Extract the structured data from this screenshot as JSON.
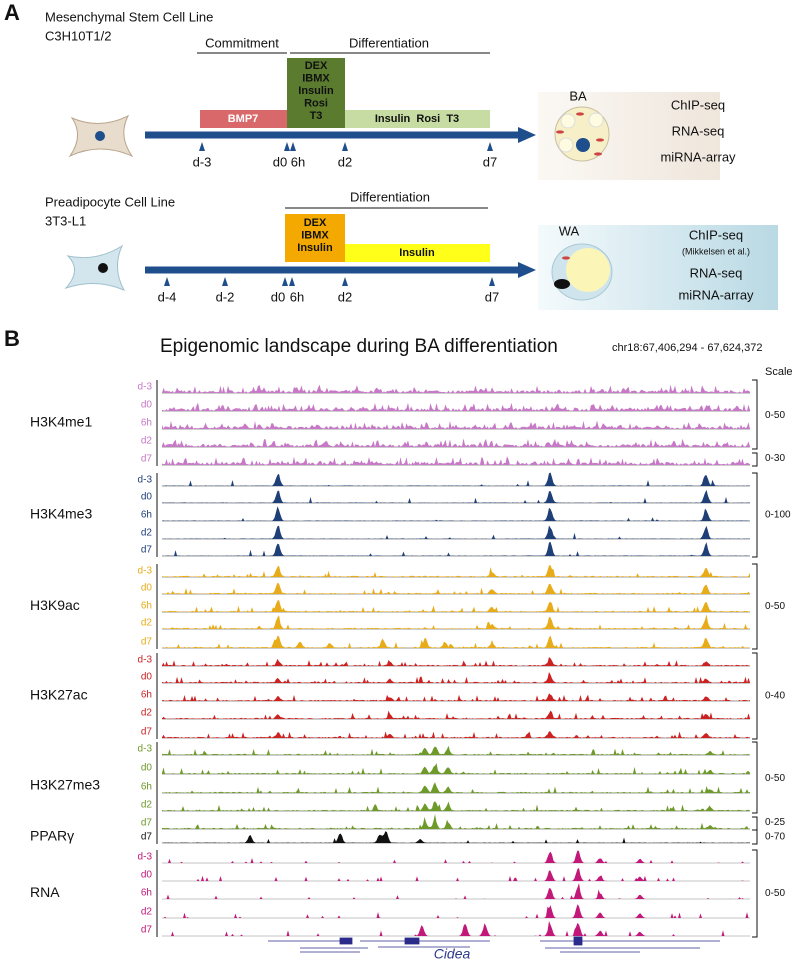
{
  "panel_a": {
    "label": "A",
    "top": {
      "title": [
        "Mesenchymal Stem Cell Line",
        "C3H10T1/2"
      ],
      "phases": [
        "Commitment",
        "Differentiation"
      ],
      "bmp7": "BMP7",
      "cocktail": [
        "DEX",
        "IBMX",
        "Insulin",
        "Rosi",
        "T3"
      ],
      "maintenance": "Insulin  Rosi  T3",
      "timepoints": [
        "d-3",
        "d0",
        "6h",
        "d2",
        "d7"
      ],
      "cell": "BA",
      "assays": [
        "ChIP-seq",
        "RNA-seq",
        "miRNA-array"
      ]
    },
    "bottom": {
      "title": [
        "Preadipocyte Cell Line",
        "3T3-L1"
      ],
      "phase": "Differentiation",
      "cocktail": [
        "DEX",
        "IBMX",
        "Insulin"
      ],
      "maintenance": "Insulin",
      "timepoints": [
        "d-4",
        "d-2",
        "d0",
        "6h",
        "d2",
        "d7"
      ],
      "cell": "WA",
      "assays": [
        "ChIP-seq",
        "(Mikkelsen et al.)",
        "RNA-seq",
        "miRNA-array"
      ]
    }
  },
  "panel_b": {
    "label": "B",
    "title": "Epigenomic landscape during BA differentiation",
    "locus": "chr18:67,406,294 - 67,624,372",
    "scale_header": "Scale",
    "groups": [
      {
        "name": "H3K4me1",
        "tracks": [
          "d-3",
          "d0",
          "6h",
          "d2",
          "d7"
        ],
        "scales": [
          "0-50",
          "0-30"
        ]
      },
      {
        "name": "H3K4me3",
        "tracks": [
          "d-3",
          "d0",
          "6h",
          "d2",
          "d7"
        ],
        "scales": [
          "0-100"
        ]
      },
      {
        "name": "H3K9ac",
        "tracks": [
          "d-3",
          "d0",
          "6h",
          "d2",
          "d7"
        ],
        "scales": [
          "0-50"
        ]
      },
      {
        "name": "H3K27ac",
        "tracks": [
          "d-3",
          "d0",
          "6h",
          "d2",
          "d7"
        ],
        "scales": [
          "0-40"
        ]
      },
      {
        "name": "H3K27me3",
        "tracks": [
          "d-3",
          "d0",
          "6h",
          "d2",
          "d7"
        ],
        "scales": [
          "0-50",
          "0-25"
        ]
      },
      {
        "name": "PPARγ",
        "tracks": [
          "d7"
        ],
        "scales": [
          "0-70"
        ]
      },
      {
        "name": "RNA",
        "tracks": [
          "d-3",
          "d0",
          "6h",
          "d2",
          "d7"
        ],
        "scales": [
          "0-50"
        ]
      }
    ],
    "gene": "Cidea"
  }
}
